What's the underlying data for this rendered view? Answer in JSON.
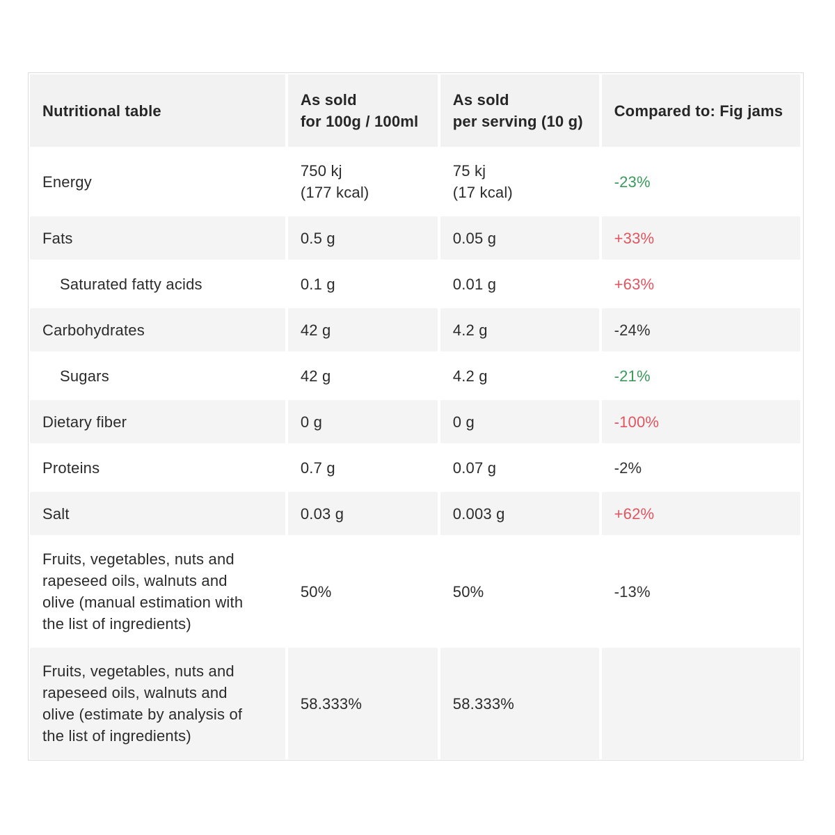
{
  "table": {
    "headers": [
      "Nutritional table",
      "As sold\nfor 100g / 100ml",
      "As sold\nper serving (10 g)",
      "Compared to: Fig jams"
    ],
    "rows": [
      {
        "nutrient": "Energy",
        "per100": "750 kj\n(177 kcal)",
        "perServing": "75 kj\n(17 kcal)",
        "compared": "-23%",
        "compared_tone": "good"
      },
      {
        "nutrient": "Fats",
        "per100": "0.5 g",
        "perServing": "0.05 g",
        "compared": "+33%",
        "compared_tone": "bad"
      },
      {
        "nutrient": "Saturated fatty acids",
        "per100": "0.1 g",
        "perServing": "0.01 g",
        "compared": "+63%",
        "compared_tone": "bad"
      },
      {
        "nutrient": "Carbohydrates",
        "per100": "42 g",
        "perServing": "4.2 g",
        "compared": "-24%",
        "compared_tone": "neutral"
      },
      {
        "nutrient": "Sugars",
        "per100": "42 g",
        "perServing": "4.2 g",
        "compared": "-21%",
        "compared_tone": "good"
      },
      {
        "nutrient": "Dietary fiber",
        "per100": "0 g",
        "perServing": "0 g",
        "compared": "-100%",
        "compared_tone": "bad"
      },
      {
        "nutrient": "Proteins",
        "per100": "0.7 g",
        "perServing": "0.07 g",
        "compared": "-2%",
        "compared_tone": "neutral"
      },
      {
        "nutrient": "Salt",
        "per100": "0.03 g",
        "perServing": "0.003 g",
        "compared": "+62%",
        "compared_tone": "bad"
      },
      {
        "nutrient": "Fruits, vegetables, nuts and\nrapeseed oils, walnuts and\nolive (manual estimation with\nthe list of ingredients)",
        "per100": "50%",
        "perServing": "50%",
        "compared": "-13%",
        "compared_tone": "neutral"
      },
      {
        "nutrient": "Fruits, vegetables, nuts and\nrapeseed oils, walnuts and\nolive (estimate by analysis of\nthe list of ingredients)",
        "per100": "58.333%",
        "perServing": "58.333%",
        "compared": "",
        "compared_tone": "neutral"
      }
    ]
  },
  "colors": {
    "good": "#3a9a5b",
    "bad": "#e0555f",
    "neutral": "#333333",
    "header_bg": "#f2f2f2",
    "stripe_bg": "#f4f4f4"
  }
}
